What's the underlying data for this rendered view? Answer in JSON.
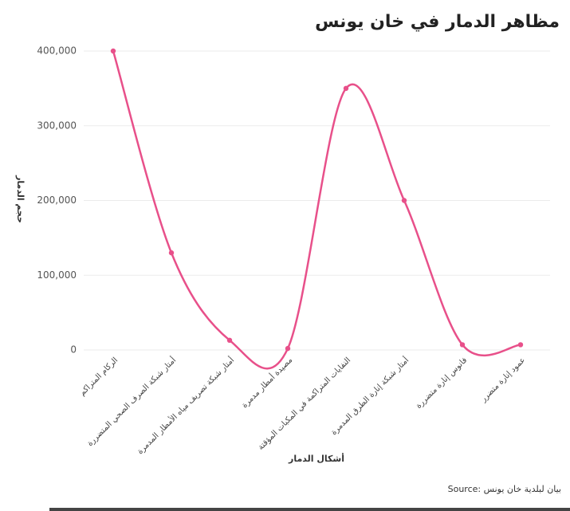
{
  "chart_data": {
    "type": "line",
    "title": "مظاهر الدمار في خان يونس",
    "x_label": "أشكال الدمار",
    "y_label": "حجم الدمار",
    "source": "Source: بيان لبلدية خان يونس",
    "categories": [
      "الركام المتراكم",
      "أمتار شبكة الصرف الصحي المتضررة",
      "أمتار شبكة تصريف مياه الأمطار المدمرة",
      "مصيدة أمطار مدمرة",
      "النفايات المتراكمة في المكبات المؤقتة",
      "أمتار شبكة إنارة الطرق المدمرة",
      "فانوس إنارة متضررة",
      "عمود إنارة متضرر"
    ],
    "values": [
      400000,
      130000,
      13000,
      2000,
      350000,
      200000,
      7000,
      7000
    ],
    "color": "#e8508a",
    "ylim": [
      0,
      400000
    ],
    "yticks": [
      0,
      {
        "value": 100000,
        "label": "100,000"
      },
      {
        "value": 200000,
        "label": "200,000"
      },
      {
        "value": 300000,
        "label": "300,000"
      },
      {
        "value": 400000,
        "label": "400,000"
      }
    ],
    "grid": true
  }
}
